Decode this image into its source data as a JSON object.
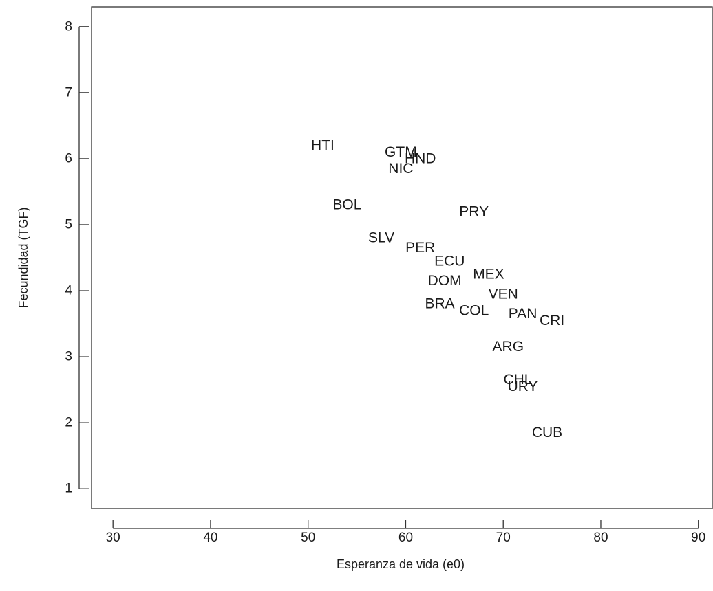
{
  "chart_data": {
    "type": "scatter",
    "title": "",
    "xlabel": "Esperanza de vida (e0)",
    "ylabel": "Fecundidad (TGF)",
    "xlim": [
      27.8,
      91.5
    ],
    "ylim": [
      0.7,
      8.3
    ],
    "xticks": [
      30,
      40,
      50,
      60,
      70,
      80,
      90
    ],
    "yticks": [
      1,
      2,
      3,
      4,
      5,
      6,
      7,
      8
    ],
    "grid": false,
    "legend": "none",
    "point_style": "text-labels",
    "points": [
      {
        "label": "HTI",
        "x": 51.5,
        "y": 6.2
      },
      {
        "label": "GTM",
        "x": 59.5,
        "y": 6.1
      },
      {
        "label": "HND",
        "x": 61.5,
        "y": 6.0
      },
      {
        "label": "NIC",
        "x": 59.5,
        "y": 5.85
      },
      {
        "label": "BOL",
        "x": 54.0,
        "y": 5.3
      },
      {
        "label": "PRY",
        "x": 67.0,
        "y": 5.2
      },
      {
        "label": "SLV",
        "x": 57.5,
        "y": 4.8
      },
      {
        "label": "PER",
        "x": 61.5,
        "y": 4.65
      },
      {
        "label": "ECU",
        "x": 64.5,
        "y": 4.45
      },
      {
        "label": "MEX",
        "x": 68.5,
        "y": 4.25
      },
      {
        "label": "DOM",
        "x": 64.0,
        "y": 4.15
      },
      {
        "label": "VEN",
        "x": 70.0,
        "y": 3.95
      },
      {
        "label": "BRA",
        "x": 63.5,
        "y": 3.8
      },
      {
        "label": "COL",
        "x": 67.0,
        "y": 3.7
      },
      {
        "label": "PAN",
        "x": 72.0,
        "y": 3.65
      },
      {
        "label": "CRI",
        "x": 75.0,
        "y": 3.55
      },
      {
        "label": "ARG",
        "x": 70.5,
        "y": 3.15
      },
      {
        "label": "CHL",
        "x": 71.5,
        "y": 2.65
      },
      {
        "label": "URY",
        "x": 72.0,
        "y": 2.55
      },
      {
        "label": "CUB",
        "x": 74.5,
        "y": 1.85
      }
    ]
  }
}
